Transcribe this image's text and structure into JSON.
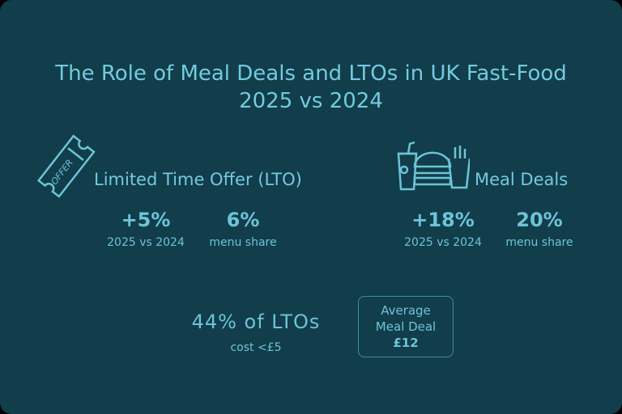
{
  "title_line1": "The Role of Meal Deals and LTOs in UK Fast-Food",
  "title_line2": "2025 vs 2024",
  "lto": {
    "icon": "offer-ticket-icon",
    "icon_text": "OFFER",
    "heading": "Limited Time Offer (LTO)",
    "stats": [
      {
        "value": "+5%",
        "label": "2025 vs 2024"
      },
      {
        "value": "6%",
        "label": "menu share"
      }
    ],
    "cost_value": "44% of LTOs",
    "cost_label": "cost <£5"
  },
  "meal": {
    "icon": "meal-deal-icon",
    "heading": "Meal Deals",
    "stats": [
      {
        "value": "+18%",
        "label": "2025 vs 2024"
      },
      {
        "value": "20%",
        "label": "menu share"
      }
    ],
    "avg_line1": "Average",
    "avg_line2": "Meal Deal",
    "avg_value": "£12"
  },
  "colors": {
    "background": "#123d4a",
    "text": "#6cc4d8"
  }
}
